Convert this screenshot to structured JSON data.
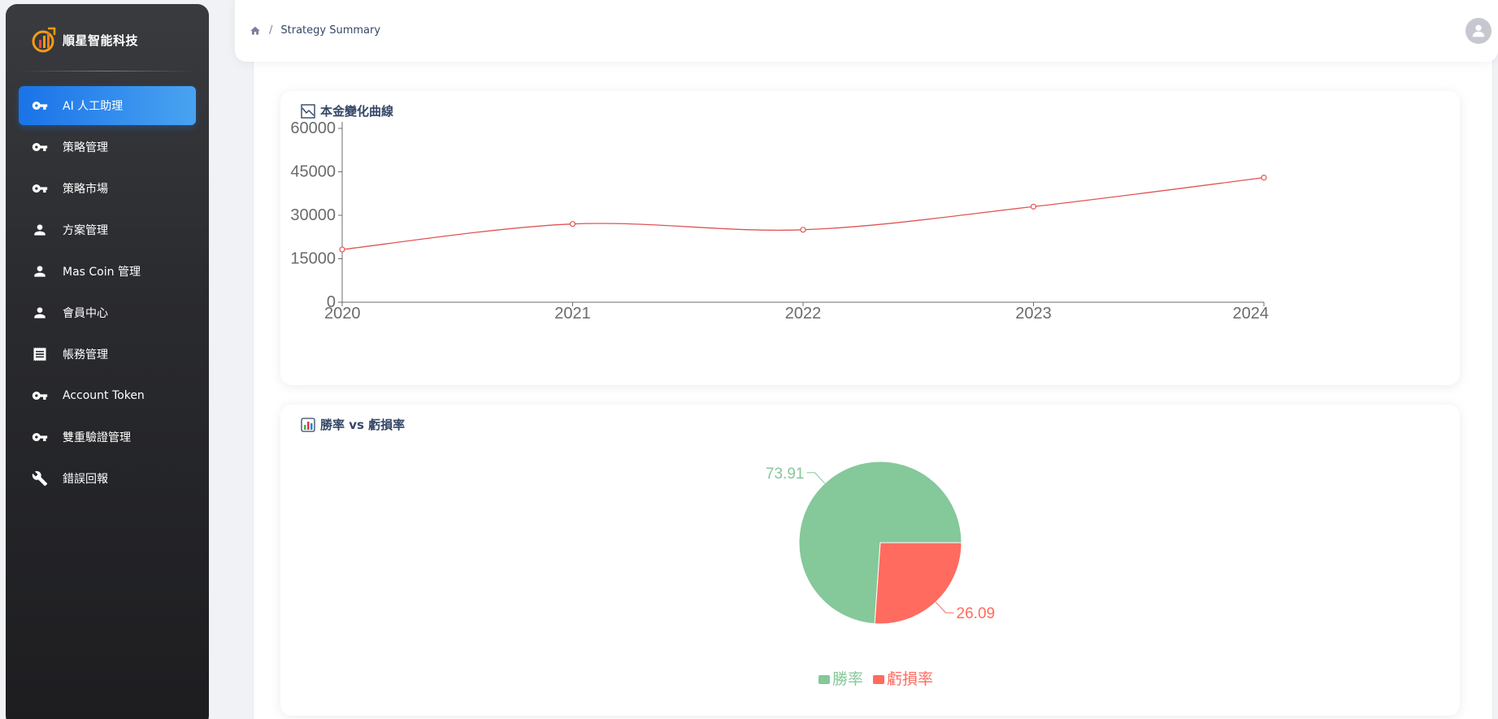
{
  "brand": {
    "name": "順星智能科技"
  },
  "sidebar": {
    "items": [
      {
        "label": "AI 人工助理",
        "icon": "key-icon",
        "active": true
      },
      {
        "label": "策略管理",
        "icon": "key-icon",
        "active": false
      },
      {
        "label": "策略市場",
        "icon": "key-icon",
        "active": false
      },
      {
        "label": "方案管理",
        "icon": "person-icon",
        "active": false
      },
      {
        "label": "Mas Coin 管理",
        "icon": "person-icon",
        "active": false
      },
      {
        "label": "會員中心",
        "icon": "person-icon",
        "active": false
      },
      {
        "label": "帳務管理",
        "icon": "receipt-icon",
        "active": false
      },
      {
        "label": "Account Token",
        "icon": "key-icon",
        "active": false
      },
      {
        "label": "雙重驗證管理",
        "icon": "key-icon",
        "active": false
      },
      {
        "label": "錯誤回報",
        "icon": "wrench-icon",
        "active": false
      }
    ]
  },
  "header": {
    "breadcrumb": {
      "separator": "/",
      "current": "Strategy Summary"
    }
  },
  "capital_card": {
    "title": "本金變化曲線"
  },
  "winrate_card": {
    "title": "勝率 vs 虧損率"
  },
  "colors": {
    "accent": "#1a73e8",
    "line": "#e05555",
    "win": "#85c89a",
    "loss": "#ff6b5f"
  },
  "chart_data": [
    {
      "type": "line",
      "title": "本金變化曲線",
      "categories": [
        "2020",
        "2021",
        "2022",
        "2023",
        "2024"
      ],
      "series": [
        {
          "values": [
            18200,
            27000,
            25000,
            33000,
            43000
          ]
        }
      ],
      "y_ticks": [
        "0",
        "15000",
        "30000",
        "45000",
        "60000"
      ],
      "ylim": [
        0,
        60000
      ],
      "smooth": true,
      "grid": false
    },
    {
      "type": "pie",
      "title": "勝率 vs 虧損率",
      "slices": [
        {
          "label": "勝率",
          "value": 73.91,
          "value_label": "73.91"
        },
        {
          "label": "虧損率",
          "value": 26.09,
          "value_label": "26.09"
        }
      ],
      "legend": "bottom"
    }
  ]
}
